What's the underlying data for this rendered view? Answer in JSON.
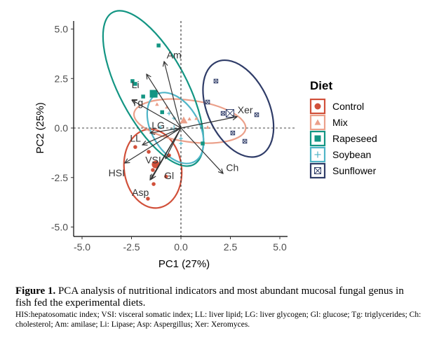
{
  "chart_data": {
    "type": "scatter",
    "subtype": "pca-biplot",
    "xlabel": "PC1 (27%)",
    "ylabel": "PC2 (25%)",
    "xlim": [
      -5.5,
      5.5
    ],
    "ylim": [
      -5.3,
      5.3
    ],
    "xticks": [
      -5.0,
      -2.5,
      0.0,
      2.5,
      5.0
    ],
    "yticks": [
      -5.0,
      -2.5,
      0.0,
      2.5,
      5.0
    ],
    "xtick_labels": [
      "-5.0",
      "-2.5",
      "0.0",
      "2.5",
      "5.0"
    ],
    "ytick_labels": [
      "-5.0",
      "-2.5",
      "0.0",
      "2.5",
      "5.0"
    ],
    "grid": false,
    "reference_lines": {
      "x": 0,
      "y": 0,
      "style": "dashed"
    },
    "legend": {
      "title": "Diet",
      "position": "right"
    },
    "series": [
      {
        "name": "Control",
        "color": "#d1503a",
        "marker": "circle",
        "points": [
          [
            -2.31,
            -0.96
          ],
          [
            -1.63,
            -1.2
          ],
          [
            -0.6,
            -1.38
          ],
          [
            -1.42,
            -2.12
          ],
          [
            -1.38,
            -2.83
          ],
          [
            -0.75,
            -2.45
          ],
          [
            -1.67,
            -3.57
          ]
        ],
        "centroid": [
          -1.28,
          -1.84
        ],
        "ellipse": {
          "center": [
            -1.42,
            -2.05
          ],
          "rx": 1.45,
          "ry": 2.0,
          "angle": -8
        }
      },
      {
        "name": "Mix",
        "color": "#eba08a",
        "marker": "triangle",
        "points": [
          [
            0.43,
            0.46
          ],
          [
            1.35,
            0.04
          ],
          [
            -0.71,
            1.06
          ],
          [
            -1.21,
            1.2
          ],
          [
            0.78,
            0.49
          ]
        ],
        "centroid": [
          0.14,
          0.39
        ],
        "ellipse": {
          "center": [
            0.45,
            0.35
          ],
          "rx": 2.85,
          "ry": 1.05,
          "angle": 8
        }
      },
      {
        "name": "Rapeseed",
        "color": "#139583",
        "marker": "square",
        "points": [
          [
            -1.13,
            4.17
          ],
          [
            -2.45,
            2.37
          ],
          [
            -2.31,
            2.23
          ],
          [
            -1.91,
            1.59
          ],
          [
            1.1,
            -0.78
          ],
          [
            -0.95,
            0.8
          ]
        ],
        "centroid": [
          -1.38,
          1.73
        ],
        "ellipse": {
          "center": [
            -1.4,
            2.0
          ],
          "rx": 1.7,
          "ry": 4.35,
          "angle": -28
        }
      },
      {
        "name": "Soybean",
        "color": "#4fb5c7",
        "marker": "plus",
        "points": [
          [
            -0.6,
            0.74
          ],
          [
            0.0,
            -0.53
          ],
          [
            0.0,
            -0.78
          ],
          [
            -1.06,
            0.04
          ],
          [
            -0.35,
            0.5
          ]
        ],
        "centroid": [
          -0.35,
          -0.05
        ],
        "ellipse": {
          "center": [
            -0.28,
            0.0
          ],
          "rx": 1.2,
          "ry": 1.95,
          "angle": -30
        }
      },
      {
        "name": "Sunflower",
        "color": "#2f3c68",
        "marker": "square-cross",
        "points": [
          [
            1.77,
            2.37
          ],
          [
            1.35,
            1.31
          ],
          [
            2.13,
            0.74
          ],
          [
            3.83,
            0.67
          ],
          [
            2.62,
            -0.25
          ],
          [
            3.23,
            -0.67
          ]
        ],
        "centroid": [
          2.48,
          0.74
        ],
        "ellipse": {
          "center": [
            2.9,
            0.98
          ],
          "rx": 1.55,
          "ry": 2.6,
          "angle": -25
        }
      }
    ],
    "loadings": [
      {
        "label": "Am",
        "x": -0.85,
        "y": 3.36
      },
      {
        "label": "Li",
        "x": -1.74,
        "y": 2.72
      },
      {
        "label": "Tg",
        "x": -2.48,
        "y": 1.41
      },
      {
        "label": "LG",
        "x": -1.56,
        "y": -0.25
      },
      {
        "label": "LL",
        "x": -1.95,
        "y": -0.85
      },
      {
        "label": "HSI",
        "x": -2.84,
        "y": -1.77
      },
      {
        "label": "VSI",
        "x": -0.78,
        "y": -1.55
      },
      {
        "label": "Gl",
        "x": -1.49,
        "y": -2.58
      },
      {
        "label": "Asp",
        "x": -1.56,
        "y": -2.62
      },
      {
        "label": "Ch",
        "x": 2.13,
        "y": -2.3
      },
      {
        "label": "Xer",
        "x": 2.84,
        "y": 0.57
      }
    ],
    "loading_label_positions": {
      "Am": [
        -0.35,
        3.65
      ],
      "Li": [
        -2.3,
        2.15
      ],
      "Tg": [
        -2.2,
        1.25
      ],
      "LG": [
        -1.15,
        0.1
      ],
      "LL": [
        -2.3,
        -0.55
      ],
      "HSI": [
        -3.25,
        -2.3
      ],
      "VSI": [
        -1.4,
        -1.65
      ],
      "Gl": [
        -0.6,
        -2.45
      ],
      "Asp": [
        -2.05,
        -3.3
      ],
      "Ch": [
        2.6,
        -2.05
      ],
      "Xer": [
        3.25,
        0.88
      ]
    }
  },
  "caption": {
    "figure_label": "Figure 1.",
    "title_text": " PCA analysis of nutritional indicators and most abundant mucosal fungal genus in fish fed the experimental diets.",
    "abbreviations": "HIS:hepatosomatic index; VSI: visceral somatic index; LL: liver lipid; LG: liver glycogen; Gl: glucose; Tg: triglycerides; Ch: cholesterol; Am: amilase; Li: Lipase; Asp: Aspergillus; Xer: Xeromyces."
  }
}
